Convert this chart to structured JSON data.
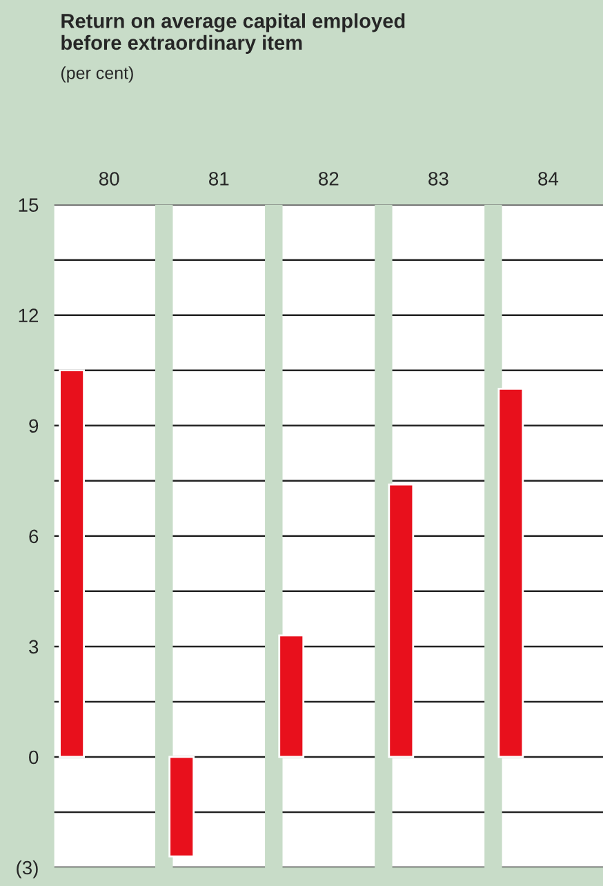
{
  "chart_data": {
    "type": "bar",
    "title": "Return on average capital employed\nbefore extraordinary item",
    "subtitle": "(per cent)",
    "categories": [
      "80",
      "81",
      "82",
      "83",
      "84"
    ],
    "values": [
      10.5,
      -2.7,
      3.3,
      7.4,
      10.0
    ],
    "color": "#e8101c",
    "ylim": [
      -3,
      15
    ],
    "yticks": [
      15,
      {
        "value": 13.5,
        "label": null
      },
      12,
      {
        "value": 10.5,
        "label": null
      },
      9,
      {
        "value": 7.5,
        "label": null
      },
      6,
      {
        "value": 4.5,
        "label": null
      },
      3,
      {
        "value": 1.5,
        "label": null
      },
      0,
      {
        "value": -1.5,
        "label": null
      },
      {
        "value": -3,
        "label": "(3)"
      }
    ],
    "grid": "y"
  }
}
